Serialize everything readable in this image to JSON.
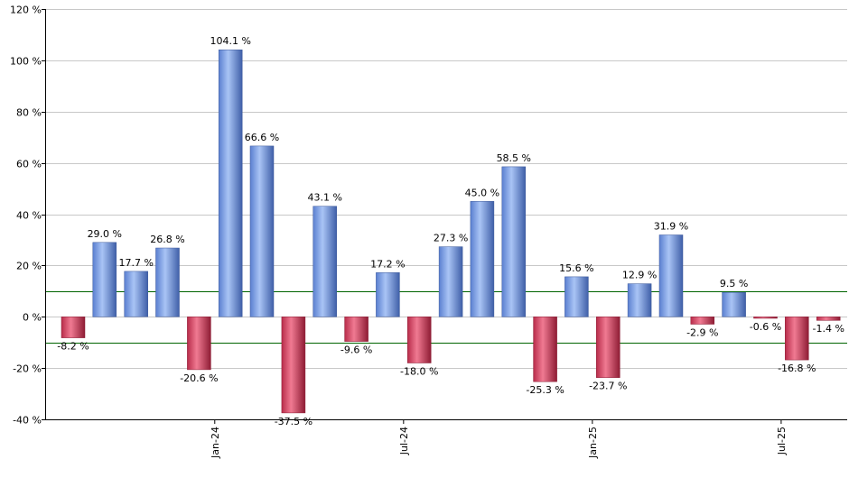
{
  "chart_data": {
    "type": "bar",
    "ylim": [
      -40,
      120
    ],
    "yticks": [
      -40,
      -20,
      0,
      20,
      40,
      60,
      80,
      100,
      120
    ],
    "ytick_labels": [
      "-40 %",
      "-20 %",
      "0 %",
      "20 %",
      "40 %",
      "60 %",
      "80 %",
      "100 %",
      "120 %"
    ],
    "grid": true,
    "reference_lines": [
      10,
      -10
    ],
    "reference_line_color": "#006400",
    "positive_color": "#7ea4e8",
    "negative_color": "#d9405f",
    "values": [
      -8.2,
      29.0,
      17.7,
      26.8,
      -20.6,
      104.1,
      66.6,
      -37.5,
      43.1,
      -9.6,
      17.2,
      -18.0,
      27.3,
      45.0,
      58.5,
      -25.3,
      15.6,
      -23.7,
      12.9,
      31.9,
      -2.9,
      9.5,
      -0.6,
      -16.8,
      -1.4
    ],
    "labels": [
      "-8.2 %",
      "29.0 %",
      "17.7 %",
      "26.8 %",
      "-20.6 %",
      "104.1 %",
      "66.6 %",
      "-37.5 %",
      "43.1 %",
      "-9.6 %",
      "17.2 %",
      "-18.0 %",
      "27.3 %",
      "45.0 %",
      "58.5 %",
      "-25.3 %",
      "15.6 %",
      "-23.7 %",
      "12.9 %",
      "31.9 %",
      "-2.9 %",
      "9.5 %",
      "-0.6 %",
      "-16.8 %",
      "-1.4 %"
    ],
    "x_ticks": [
      {
        "label": "Jan-24",
        "after_bar": 4
      },
      {
        "label": "Jul-24",
        "after_bar": 10
      },
      {
        "label": "Jan-25",
        "after_bar": 16
      },
      {
        "label": "Jul-25",
        "after_bar": 22
      }
    ]
  }
}
